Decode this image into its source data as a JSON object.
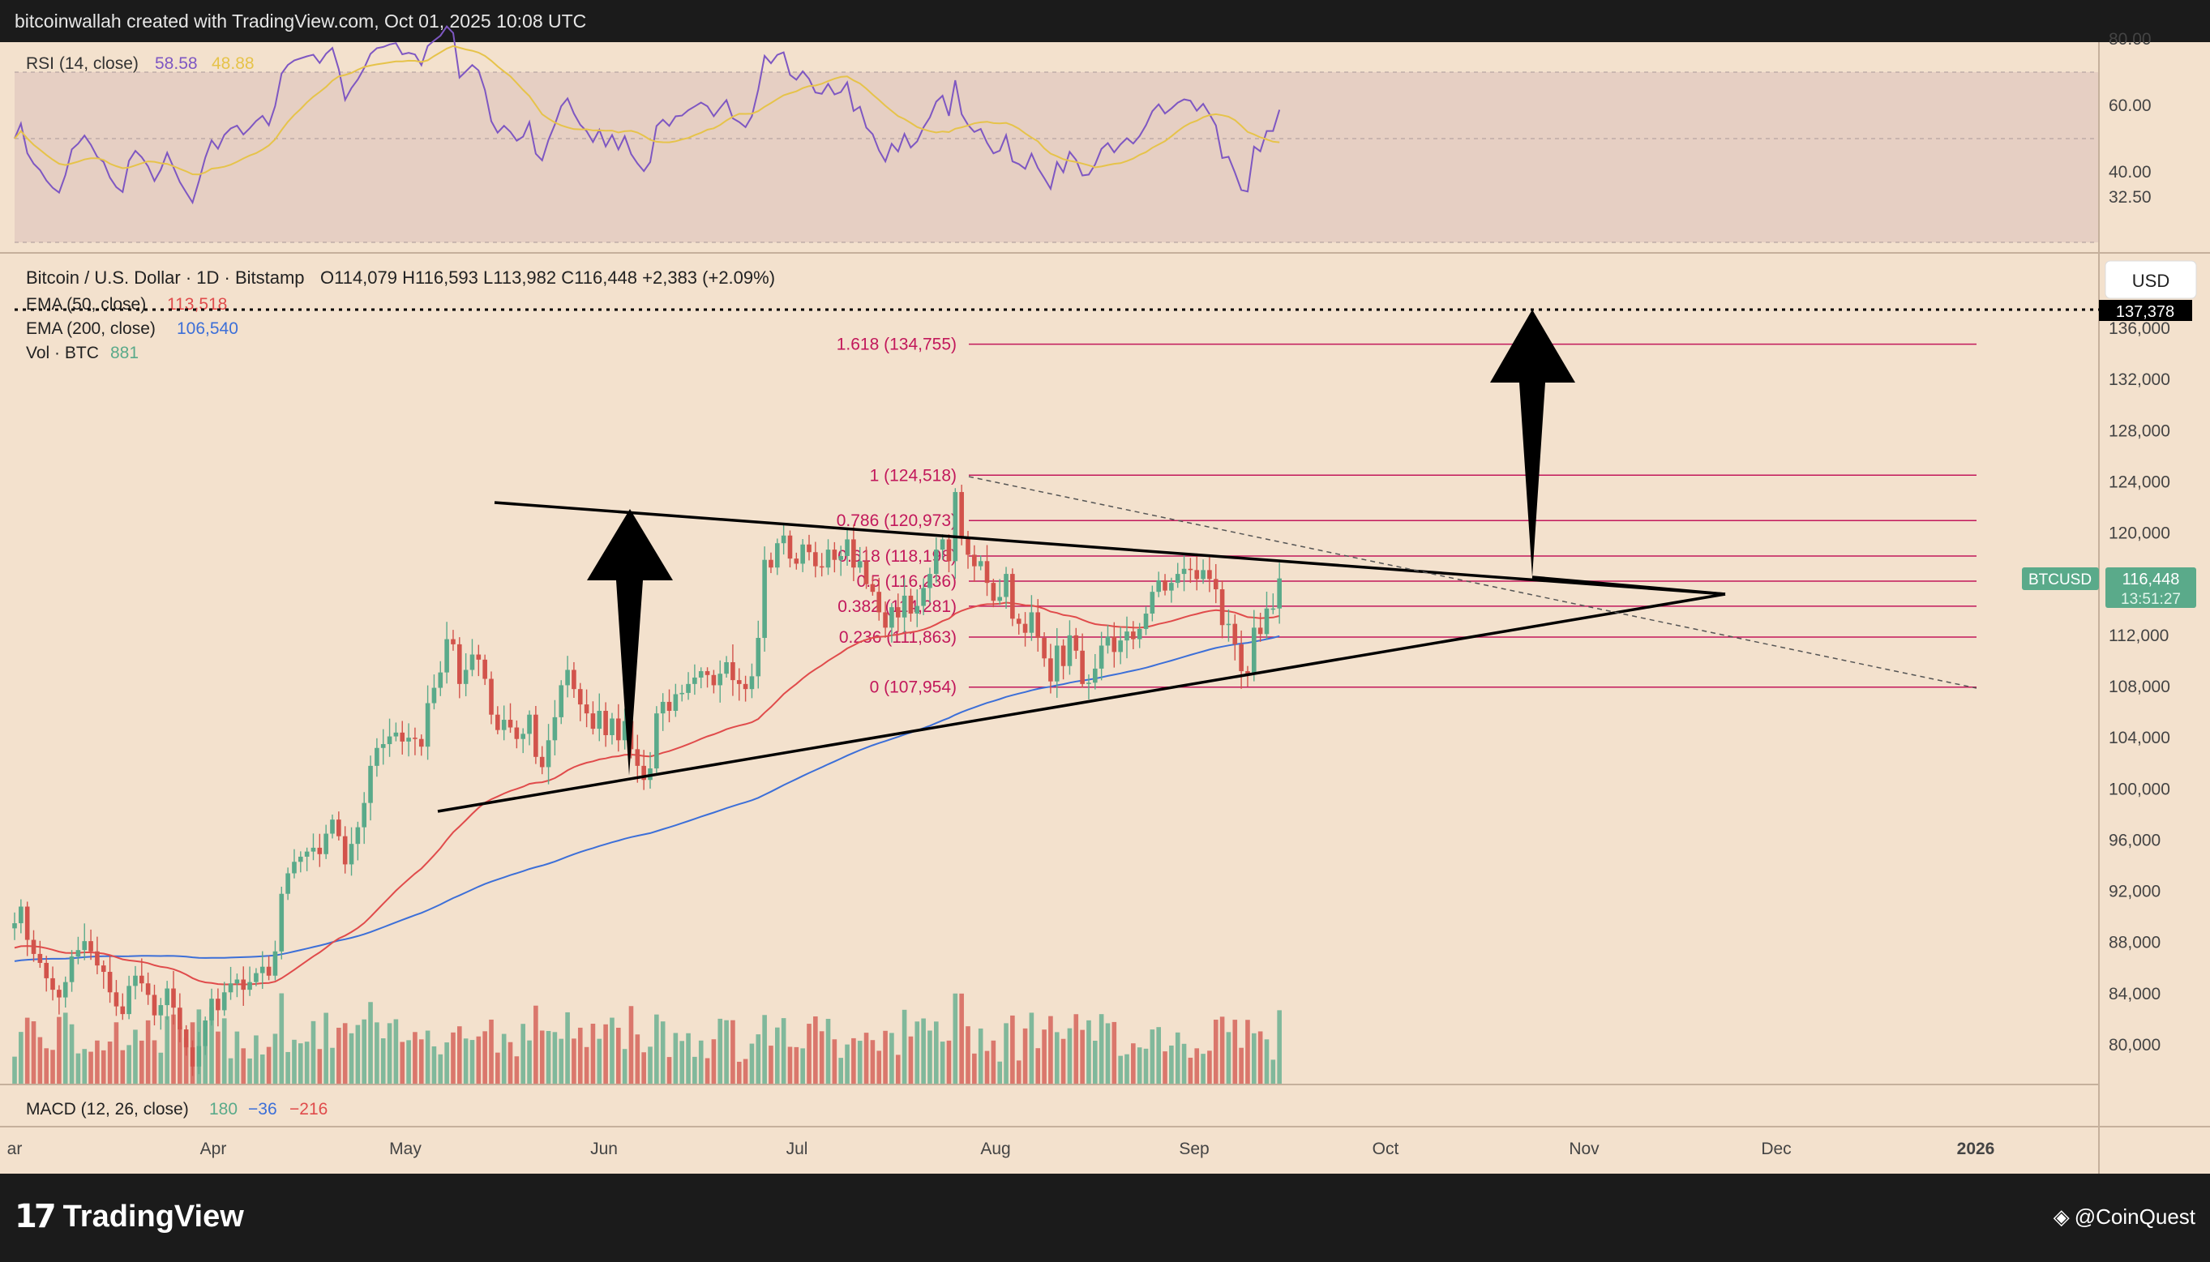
{
  "header": {
    "attribution": "bitcoinwallah created with TradingView.com, Oct 01, 2025 10:08 UTC"
  },
  "rsi_panel": {
    "label": "RSI (14, close)",
    "value1": "58.58",
    "value2": "48.88",
    "levels": [
      "80.00",
      "60.00",
      "40.00",
      "32.50"
    ]
  },
  "price_panel": {
    "symbol_line": "Bitcoin / U.S. Dollar · 1D · Bitstamp",
    "ohlc": "O114,079  H116,593  L113,982  C116,448  +2,383 (+2.09%)",
    "ema50_label": "EMA (50, close)",
    "ema50_value": "113,518",
    "ema200_label": "EMA (200, close)",
    "ema200_value": "106,540",
    "vol_label": "Vol · BTC",
    "vol_value": "881",
    "currency_button": "USD",
    "target_label": "137,378",
    "ticker_label": "BTCUSD",
    "last_price": "116,448",
    "countdown": "13:51:27"
  },
  "macd_panel": {
    "label": "MACD (12, 26, close)",
    "v1": "180",
    "v2": "−36",
    "v3": "−216"
  },
  "colors": {
    "bg": "#f3e1cd",
    "up": "#5aaa8a",
    "down": "#d2534b",
    "rsi": "#7e57c2",
    "rsi_ma": "#e6c34a",
    "ema50": "#e04b4b",
    "ema200": "#3c6fd8",
    "fib": "#c2185b"
  },
  "footer": {
    "brand": "TradingView",
    "watermark": "@CoinQuest"
  },
  "chart_data": {
    "type": "candlestick",
    "price_axis": [
      "136,000",
      "132,000",
      "128,000",
      "124,000",
      "120,000",
      "116,000",
      "112,000",
      "108,000",
      "104,000",
      "100,000",
      "96,000",
      "92,000",
      "88,000",
      "84,000",
      "80,000"
    ],
    "time_axis": [
      "ar",
      "Apr",
      "May",
      "Jun",
      "Jul",
      "Aug",
      "Sep",
      "Oct",
      "Nov",
      "Dec",
      "2026"
    ],
    "fib_levels": [
      {
        "label": "1.618 (134,755)",
        "price": 134755
      },
      {
        "label": "1 (124,518)",
        "price": 124518
      },
      {
        "label": "0.786 (120,973)",
        "price": 120973
      },
      {
        "label": "0.618 (118,198)",
        "price": 118198
      },
      {
        "label": "0.5 (116,236)",
        "price": 116236
      },
      {
        "label": "0.382 (114,281)",
        "price": 114281
      },
      {
        "label": "0.236 (111,863)",
        "price": 111863
      },
      {
        "label": "0 (107,954)",
        "price": 107954
      }
    ],
    "patterns": "symmetrical triangle with breakout target 137,378",
    "close": [
      89500,
      90800,
      88200,
      87100,
      86400,
      85200,
      84300,
      83700,
      84900,
      86900,
      87400,
      88100,
      87300,
      86200,
      85700,
      84100,
      83000,
      82400,
      84600,
      85400,
      84800,
      83900,
      82300,
      83100,
      84400,
      82900,
      81200,
      79800,
      78300,
      79900,
      81900,
      83600,
      82700,
      84100,
      84800,
      85100,
      84300,
      84900,
      85600,
      86100,
      85400,
      87300,
      91800,
      93400,
      94300,
      94700,
      95100,
      95400,
      94900,
      96500,
      97600,
      96300,
      94100,
      95700,
      97000,
      98900,
      101800,
      103200,
      103500,
      104100,
      104400,
      103700,
      104000,
      103900,
      103300,
      106700,
      107900,
      109100,
      111700,
      111300,
      108200,
      109300,
      110500,
      110100,
      108600,
      105800,
      104600,
      105400,
      104800,
      103900,
      104300,
      105800,
      102500,
      101700,
      103800,
      105600,
      108100,
      109300,
      107800,
      106600,
      105900,
      104700,
      106100,
      104200,
      105500,
      103800,
      105300,
      103100,
      101800,
      100700,
      101600,
      105900,
      106800,
      106100,
      107400,
      107500,
      108200,
      108700,
      109200,
      108900,
      108100,
      109000,
      109900,
      108500,
      108200,
      107800,
      108800,
      111800,
      117900,
      117300,
      119200,
      119800,
      118000,
      117600,
      119100,
      118500,
      117400,
      117300,
      118700,
      117900,
      118200,
      119500,
      117300,
      117800,
      116000,
      115400,
      113800,
      112600,
      114200,
      113400,
      115100,
      113700,
      114300,
      115700,
      116800,
      118700,
      119500,
      117800,
      123200,
      119600,
      118300,
      117400,
      117800,
      116100,
      114700,
      115000,
      116800,
      113300,
      112900,
      112200,
      113800,
      111800,
      110200,
      108400,
      111200,
      109600,
      112000,
      110800,
      108200,
      108300,
      109400,
      111200,
      111900,
      110700,
      111600,
      112300,
      111700,
      112500,
      113700,
      115400,
      116300,
      115500,
      116100,
      116800,
      117200,
      117100,
      116400,
      117100,
      116400,
      115600,
      112800,
      112900,
      111300,
      109200,
      109000,
      112600,
      112100,
      114100,
      114100,
      116448
    ],
    "ema50_last": 113518,
    "ema200_last": 106540,
    "volume_btc_last": 881,
    "rsi_last": 58.58,
    "rsi_ma_last": 48.88,
    "macd": [
      180,
      -36,
      -216
    ]
  }
}
